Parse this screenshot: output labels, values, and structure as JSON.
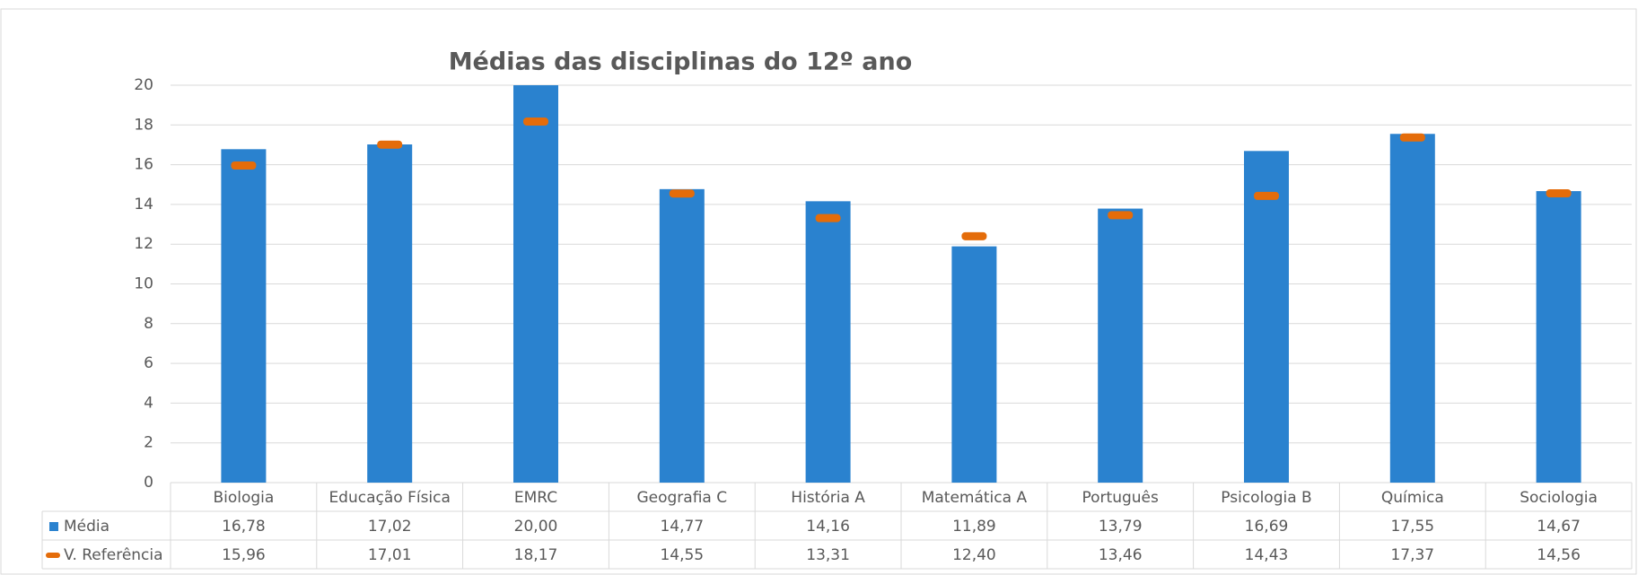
{
  "chart_data": {
    "type": "bar",
    "title": "Médias das disciplinas do 12º ano",
    "categories": [
      "Biologia",
      "Educação Física",
      "EMRC",
      "Geografia C",
      "História A",
      "Matemática A",
      "Português",
      "Psicologia B",
      "Química",
      "Sociologia"
    ],
    "series": [
      {
        "name": "Média",
        "kind": "bar",
        "color": "#2a82cf",
        "values": [
          16.78,
          17.02,
          20.0,
          14.77,
          14.16,
          11.89,
          13.79,
          16.69,
          17.55,
          14.67
        ],
        "value_labels": [
          "16,78",
          "17,02",
          "20,00",
          "14,77",
          "14,16",
          "11,89",
          "13,79",
          "16,69",
          "17,55",
          "14,67"
        ]
      },
      {
        "name": "V. Referência",
        "kind": "marker",
        "color": "#e46c0a",
        "values": [
          15.96,
          17.01,
          18.17,
          14.55,
          13.31,
          12.4,
          13.46,
          14.43,
          17.37,
          14.56
        ],
        "value_labels": [
          "15,96",
          "17,01",
          "18,17",
          "14,55",
          "13,31",
          "12,40",
          "13,46",
          "14,43",
          "17,37",
          "14,56"
        ]
      }
    ],
    "ylim": [
      0,
      20
    ],
    "yticks": [
      0,
      2,
      4,
      6,
      8,
      10,
      12,
      14,
      16,
      18,
      20
    ],
    "grid": true
  }
}
